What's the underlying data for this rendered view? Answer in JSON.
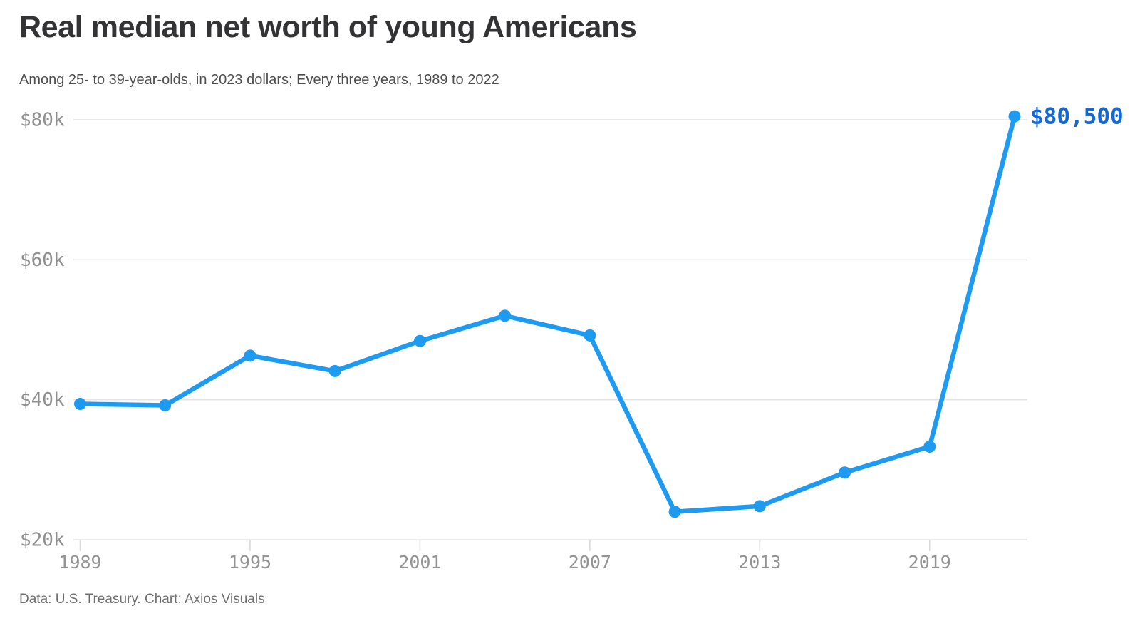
{
  "page": {
    "title": "Real median net worth of young Americans",
    "subtitle": "Among 25- to 39-year-olds, in 2023 dollars; Every three years, 1989 to 2022",
    "source": "Data: U.S. Treasury. Chart: Axios Visuals"
  },
  "chart_data": {
    "type": "line",
    "title": "Real median net worth of young Americans",
    "subtitle": "Among 25- to 39-year-olds, in 2023 dollars; Every three years, 1989 to 2022",
    "x": [
      1989,
      1992,
      1995,
      1998,
      2001,
      2004,
      2007,
      2010,
      2013,
      2016,
      2019,
      2022
    ],
    "values": [
      39400,
      39200,
      46300,
      44100,
      48400,
      52000,
      49200,
      24000,
      24800,
      29600,
      33300,
      80500
    ],
    "end_label": "$80,500",
    "yticks": [
      {
        "value": 20000,
        "label": "$20k"
      },
      {
        "value": 40000,
        "label": "$40k"
      },
      {
        "value": 60000,
        "label": "$60k"
      },
      {
        "value": 80000,
        "label": "$80k"
      }
    ],
    "xticks": [
      1989,
      1995,
      2001,
      2007,
      2013,
      2019
    ],
    "ylim": [
      20000,
      80000
    ],
    "grid": "horizontal",
    "legend": "none",
    "colors": {
      "line": "#1E9BF0",
      "point": "#1E9BF0",
      "end_label": "#1569D6",
      "gridline": "#E4E4E4",
      "tick_mark": "#D9D9D9",
      "ytick_text": "#8F8F8F",
      "xtick_text": "#939393",
      "title_text": "#333335",
      "subtitle_text": "#4D4D4D",
      "source_text": "#6E6E6E"
    }
  }
}
